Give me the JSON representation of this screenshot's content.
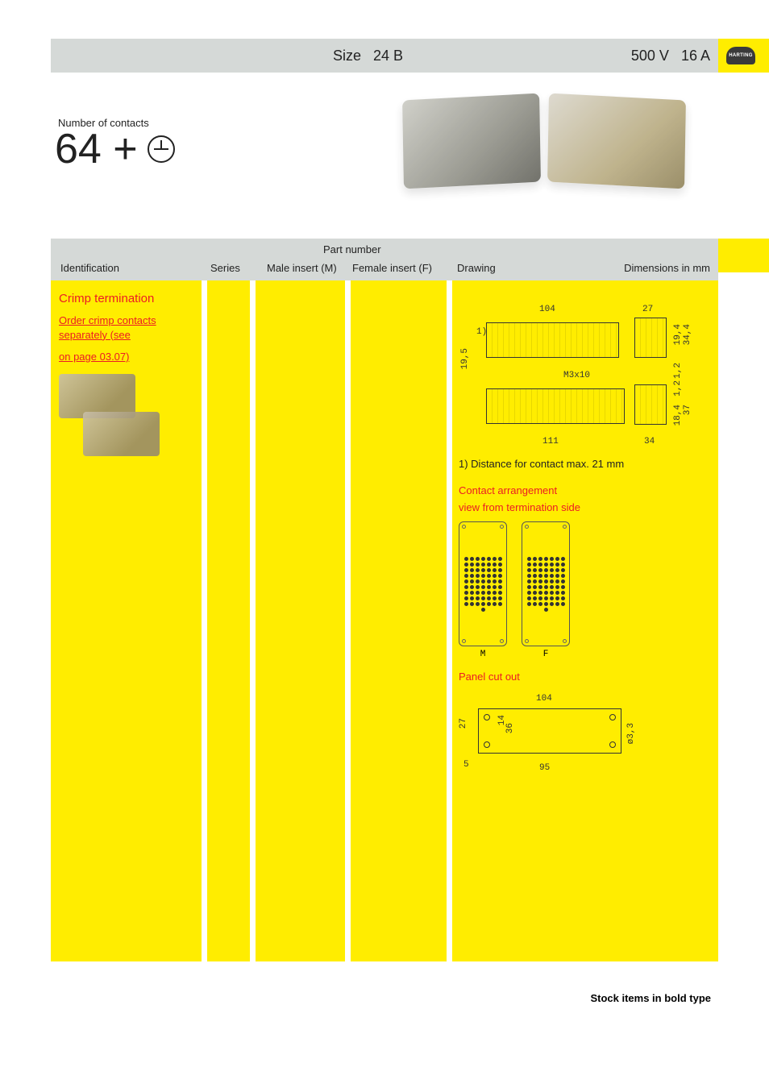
{
  "header": {
    "size_label": "Size",
    "size_value": "24 B",
    "voltage": "500  V",
    "current": "16  A",
    "logo_text": "HARTING"
  },
  "contacts": {
    "label": "Number of contacts",
    "value": "64 +"
  },
  "table_headers": {
    "identification": "Identification",
    "series": "Series",
    "part_number": "Part number",
    "male": "Male insert (M)",
    "female": "Female insert (F)",
    "drawing": "Drawing",
    "dimensions": "Dimensions in mm"
  },
  "identification_col": {
    "title": "Crimp termination",
    "line1": "Order crimp contacts",
    "line2": "separately (see",
    "line3": "on page 03.07)"
  },
  "drawing_col": {
    "dim_top_104": "104",
    "dim_27": "27",
    "dim_195": "19,5",
    "dim_11": "1)",
    "dim_m3x10": "M3x10",
    "dim_111": "111",
    "dim_34": "34",
    "dim_194": "19,4",
    "dim_344": "34,4",
    "dim_12": "1,2",
    "dim_184": "18,4",
    "dim_37": "37",
    "note1": "1) Distance for contact max. 21 mm",
    "arr_title": "Contact arrangement",
    "arr_sub": "view from termination side",
    "arr_m": "M",
    "arr_f": "F",
    "panel_title": "Panel cut out",
    "pc_104": "104",
    "pc_95": "95",
    "pc_27": "27",
    "pc_14": "14",
    "pc_36": "36",
    "pc_5": "5",
    "pc_d33": "ø3,3"
  },
  "footer": "Stock items in bold type",
  "colors": {
    "yellow": "#ffed00",
    "gray": "#d5d9d7",
    "red": "#ec1c24"
  }
}
